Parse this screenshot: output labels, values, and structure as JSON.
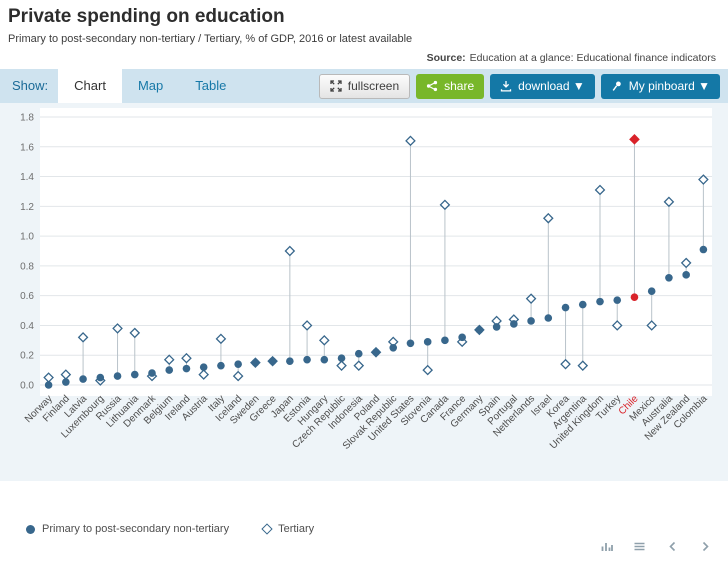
{
  "header": {
    "title": "Private spending on education",
    "subtitle": "Primary to post-secondary non-tertiary / Tertiary, % of GDP, 2016 or latest available",
    "source_label": "Source:",
    "source_link": "Education at a glance: Educational finance indicators"
  },
  "toolbar": {
    "show_label": "Show:",
    "tabs": [
      {
        "label": "Chart",
        "active": true
      },
      {
        "label": "Map",
        "active": false
      },
      {
        "label": "Table",
        "active": false
      }
    ],
    "fullscreen_label": "fullscreen",
    "share_label": "share",
    "download_label": "download ▼",
    "pinboard_label": "My pinboard ▼"
  },
  "legend": {
    "primary_label": "Primary to post-secondary non-tertiary",
    "tertiary_label": "Tertiary"
  },
  "colors": {
    "primary": "#38678c",
    "highlight": "#d9232a",
    "stem": "#b9c3ca",
    "accent_blue": "#1478a6",
    "share_green": "#78b72a",
    "toolbar_band": "#cfe3ef"
  },
  "footer_icons": [
    "bar-chart-icon",
    "menu-icon",
    "previous-arrow-icon",
    "next-arrow-icon"
  ],
  "chart_data": {
    "type": "scatter",
    "title": "Private spending on education",
    "subtitle": "Primary to post-secondary non-tertiary / Tertiary, % of GDP, 2016 or latest available",
    "ylabel": "% of GDP",
    "ylim": [
      0,
      1.8
    ],
    "yticks": [
      0.0,
      0.2,
      0.4,
      0.6,
      0.8,
      1.0,
      1.2,
      1.4,
      1.6,
      1.8
    ],
    "grid": true,
    "legend_position": "bottom-left",
    "highlight_category": "Chile",
    "categories": [
      "Norway",
      "Finland",
      "Latvia",
      "Luxembourg",
      "Russia",
      "Lithuania",
      "Denmark",
      "Belgium",
      "Ireland",
      "Austria",
      "Italy",
      "Iceland",
      "Sweden",
      "Greece",
      "Japan",
      "Estonia",
      "Hungary",
      "Czech Republic",
      "Indonesia",
      "Poland",
      "Slovak Republic",
      "United States",
      "Slovenia",
      "Canada",
      "France",
      "Germany",
      "Spain",
      "Portugal",
      "Netherlands",
      "Israel",
      "Korea",
      "Argentina",
      "United Kingdom",
      "Turkey",
      "Chile",
      "Mexico",
      "Australia",
      "New Zealand",
      "Colombia"
    ],
    "series": [
      {
        "name": "Primary to post-secondary non-tertiary",
        "marker": "filled-circle",
        "values": [
          0.0,
          0.02,
          0.04,
          0.05,
          0.06,
          0.07,
          0.08,
          0.1,
          0.11,
          0.12,
          0.13,
          0.14,
          0.15,
          0.16,
          0.16,
          0.17,
          0.17,
          0.18,
          0.21,
          0.22,
          0.25,
          0.28,
          0.29,
          0.3,
          0.32,
          0.37,
          0.39,
          0.41,
          0.43,
          0.45,
          0.52,
          0.54,
          0.56,
          0.57,
          0.59,
          0.63,
          0.72,
          0.74,
          0.91
        ]
      },
      {
        "name": "Tertiary",
        "marker": "open-diamond",
        "values": [
          0.05,
          0.07,
          0.32,
          0.03,
          0.38,
          0.35,
          0.06,
          0.17,
          0.18,
          0.07,
          0.31,
          0.06,
          0.15,
          0.16,
          0.9,
          0.4,
          0.3,
          0.13,
          0.13,
          0.22,
          0.29,
          1.64,
          0.1,
          1.21,
          0.29,
          0.37,
          0.43,
          0.44,
          0.58,
          1.12,
          0.14,
          0.13,
          1.31,
          0.4,
          1.65,
          0.4,
          1.23,
          0.82,
          1.38
        ]
      }
    ]
  }
}
